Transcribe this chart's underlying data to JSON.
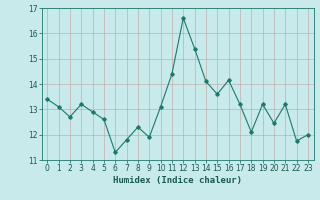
{
  "x": [
    0,
    1,
    2,
    3,
    4,
    5,
    6,
    7,
    8,
    9,
    10,
    11,
    12,
    13,
    14,
    15,
    16,
    17,
    18,
    19,
    20,
    21,
    22,
    23
  ],
  "y": [
    13.4,
    13.1,
    12.7,
    13.2,
    12.9,
    12.6,
    11.3,
    11.8,
    12.3,
    11.9,
    13.1,
    14.4,
    16.6,
    15.4,
    14.1,
    13.6,
    14.15,
    13.2,
    12.1,
    13.2,
    12.45,
    13.2,
    11.75,
    12.0
  ],
  "line_color": "#1a7a6e",
  "marker": "D",
  "marker_size": 1.8,
  "bg_color": "#c8eaea",
  "grid_color": "#c0a0a0",
  "xlabel": "Humidex (Indice chaleur)",
  "ylim": [
    11,
    17
  ],
  "xlim": [
    -0.5,
    23.5
  ],
  "yticks": [
    11,
    12,
    13,
    14,
    15,
    16,
    17
  ],
  "xticks": [
    0,
    1,
    2,
    3,
    4,
    5,
    6,
    7,
    8,
    9,
    10,
    11,
    12,
    13,
    14,
    15,
    16,
    17,
    18,
    19,
    20,
    21,
    22,
    23
  ],
  "tick_fontsize": 5.5,
  "xlabel_fontsize": 6.5,
  "line_width": 0.8
}
